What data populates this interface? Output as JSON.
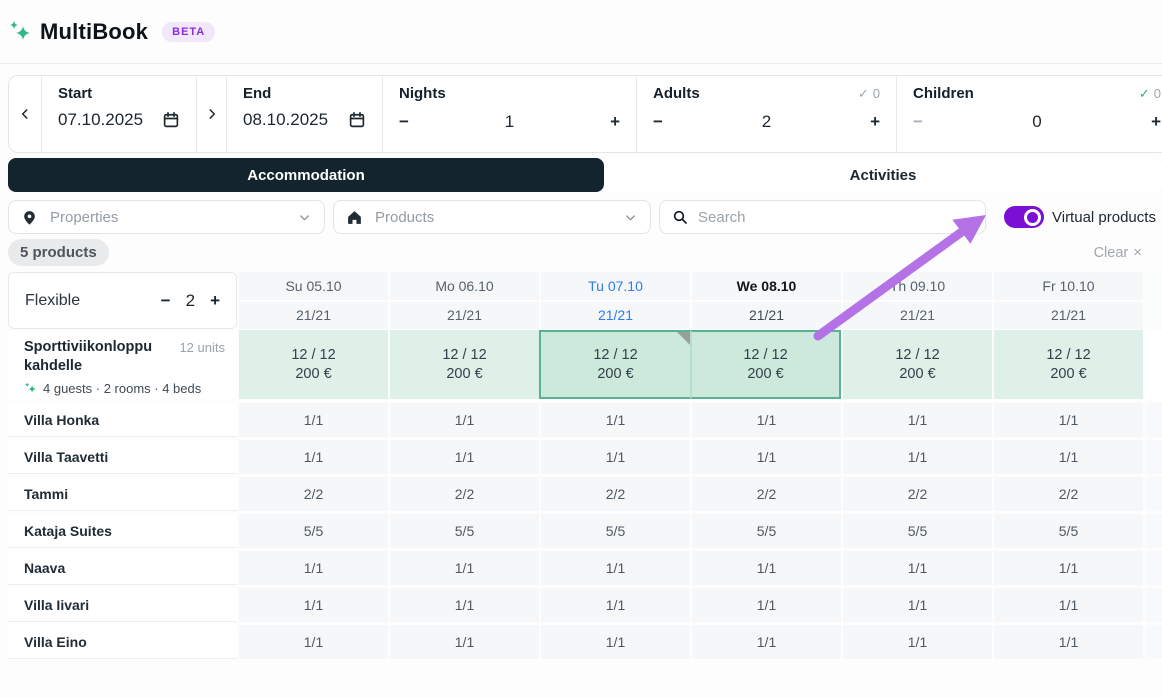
{
  "app": {
    "title": "MultiBook",
    "beta_badge": "BETA"
  },
  "icons": {
    "minus": "−",
    "plus": "+",
    "check": "✓",
    "chevron_left": "‹",
    "chevron_right": "›",
    "clear_x": "×",
    "logo": "sparkle-icon",
    "calendar": "calendar-icon",
    "location": "map-pin-icon",
    "home": "home-icon",
    "search": "search-icon",
    "dropdown": "chevron-down-icon"
  },
  "colors": {
    "brand_green": "#2FB886",
    "beta_text": "#8B2FD6",
    "tab_active_bg": "#13242F",
    "toggle_on": "#7A10D4",
    "start_date_blue": "#2E7DF0",
    "available_cell": "#DEF0E8",
    "selected_cell": "#CDE9DC",
    "selection_border": "#58B294",
    "annotation_arrow": "#B472E6"
  },
  "booking_bar": {
    "start": {
      "label": "Start",
      "value": "07.10.2025"
    },
    "end": {
      "label": "End",
      "value": "08.10.2025"
    },
    "nights": {
      "label": "Nights",
      "value": "1"
    },
    "adults": {
      "label": "Adults",
      "value": "2",
      "confirmed": "0"
    },
    "children": {
      "label": "Children",
      "value": "0",
      "confirmed": "0"
    }
  },
  "tabs": [
    {
      "label": "Accommodation",
      "active": true
    },
    {
      "label": "Activities",
      "active": false
    }
  ],
  "filters": {
    "properties": {
      "placeholder": "Properties"
    },
    "products": {
      "placeholder": "Products"
    },
    "search": {
      "placeholder": "Search"
    },
    "virtual_products": {
      "label": "Virtual products",
      "enabled": true
    }
  },
  "summary": {
    "count_badge": "5 products",
    "clear_label": "Clear"
  },
  "calendar": {
    "flexible": {
      "label": "Flexible",
      "value": "2"
    },
    "columns": [
      {
        "day": "Su 05.10",
        "availability": "21/21",
        "state": "normal"
      },
      {
        "day": "Mo 06.10",
        "availability": "21/21",
        "state": "normal"
      },
      {
        "day": "Tu 07.10",
        "availability": "21/21",
        "state": "start-date"
      },
      {
        "day": "We 08.10",
        "availability": "21/21",
        "state": "end-date"
      },
      {
        "day": "Th 09.10",
        "availability": "21/21",
        "state": "normal"
      },
      {
        "day": "Fr 10.10",
        "availability": "21/21",
        "state": "normal"
      }
    ],
    "product_row": {
      "name": "Sporttiviikonloppu kahdelle",
      "units": "12 units",
      "meta": "4 guests · 2 rooms · 4 beds",
      "cells": [
        {
          "availability": "12 / 12",
          "price": "200 €",
          "selected": false,
          "marker": false
        },
        {
          "availability": "12 / 12",
          "price": "200 €",
          "selected": false,
          "marker": false
        },
        {
          "availability": "12 / 12",
          "price": "200 €",
          "selected": true,
          "marker": true
        },
        {
          "availability": "12 / 12",
          "price": "200 €",
          "selected": true,
          "marker": false
        },
        {
          "availability": "12 / 12",
          "price": "200 €",
          "selected": false,
          "marker": false
        },
        {
          "availability": "12 / 12",
          "price": "200 €",
          "selected": false,
          "marker": false
        }
      ]
    },
    "rooms": [
      {
        "name": "Villa Honka",
        "cells": [
          "1/1",
          "1/1",
          "1/1",
          "1/1",
          "1/1",
          "1/1"
        ]
      },
      {
        "name": "Villa Taavetti",
        "cells": [
          "1/1",
          "1/1",
          "1/1",
          "1/1",
          "1/1",
          "1/1"
        ]
      },
      {
        "name": "Tammi",
        "cells": [
          "2/2",
          "2/2",
          "2/2",
          "2/2",
          "2/2",
          "2/2"
        ]
      },
      {
        "name": "Kataja Suites",
        "cells": [
          "5/5",
          "5/5",
          "5/5",
          "5/5",
          "5/5",
          "5/5"
        ]
      },
      {
        "name": "Naava",
        "cells": [
          "1/1",
          "1/1",
          "1/1",
          "1/1",
          "1/1",
          "1/1"
        ]
      },
      {
        "name": "Villa Iivari",
        "cells": [
          "1/1",
          "1/1",
          "1/1",
          "1/1",
          "1/1",
          "1/1"
        ]
      },
      {
        "name": "Villa Eino",
        "cells": [
          "1/1",
          "1/1",
          "1/1",
          "1/1",
          "1/1",
          "1/1"
        ]
      }
    ]
  },
  "annotation": {
    "points_to": "virtual-products-toggle"
  }
}
